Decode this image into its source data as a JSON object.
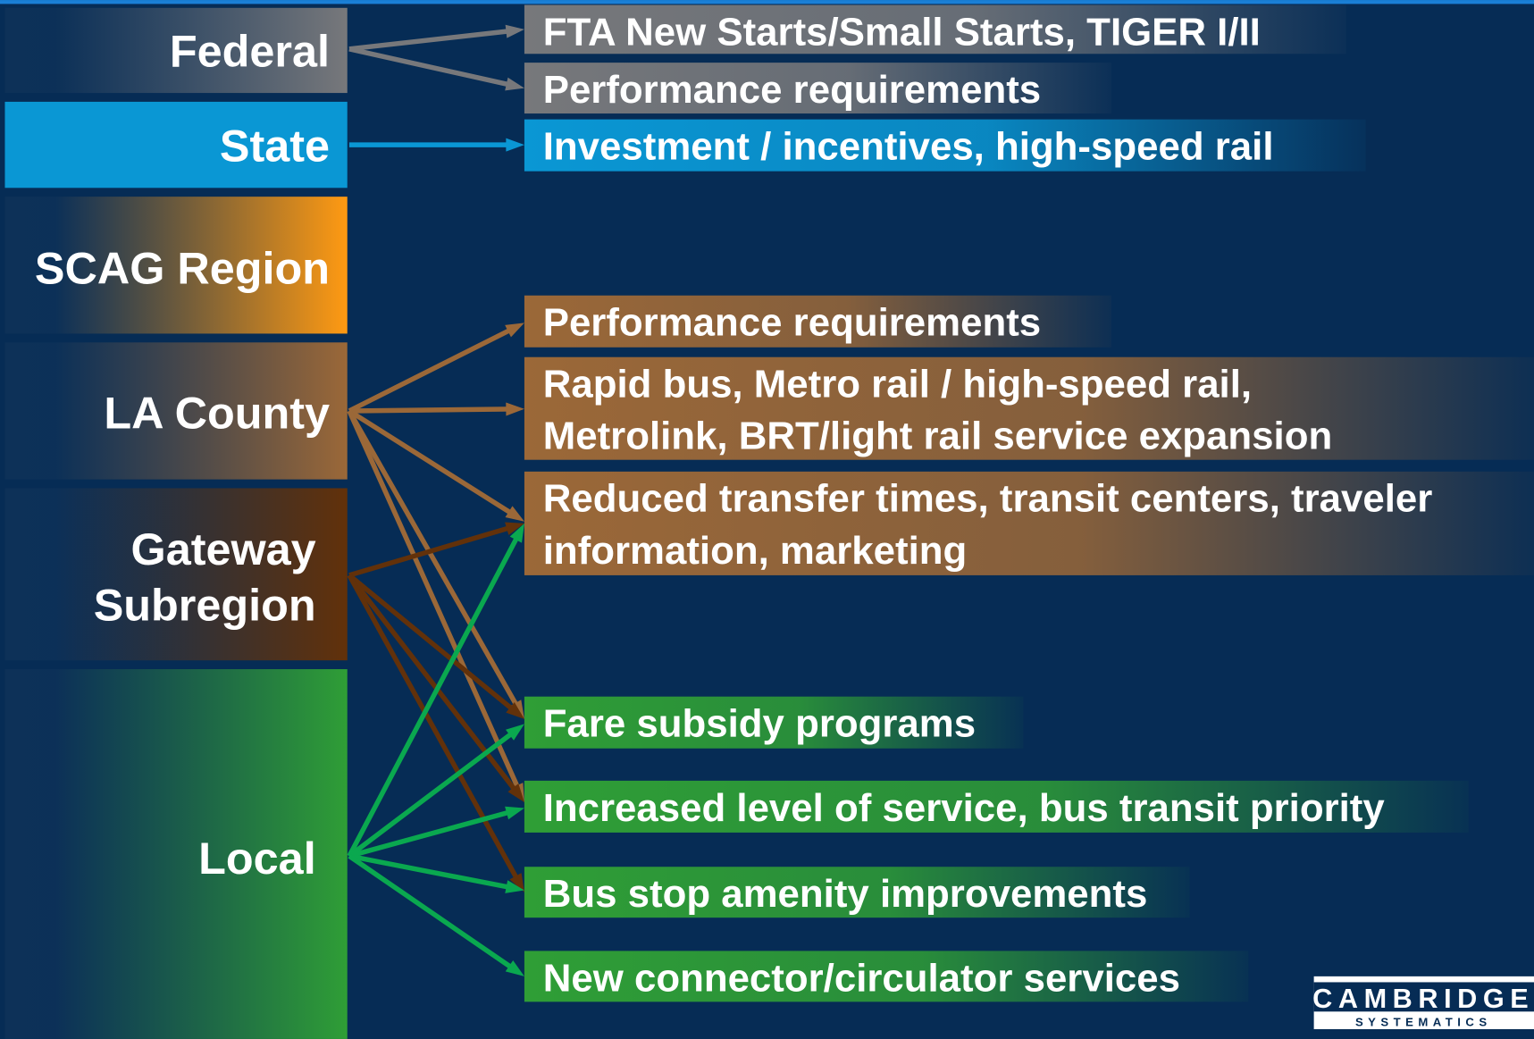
{
  "levels": [
    {
      "label": [
        "Federal"
      ]
    },
    {
      "label": [
        "State"
      ]
    },
    {
      "label": [
        "SCAG Region"
      ]
    },
    {
      "label": [
        "LA County"
      ]
    },
    {
      "label": [
        "Gateway",
        "Subregion"
      ]
    },
    {
      "label": [
        "Local"
      ]
    }
  ],
  "items": [
    {
      "label": [
        "FTA New Starts/Small Starts, TIGER I/II"
      ]
    },
    {
      "label": [
        "Performance requirements"
      ]
    },
    {
      "label": [
        "Investment / incentives, high-speed rail"
      ]
    },
    {
      "label": [
        "Performance requirements"
      ]
    },
    {
      "label": [
        "Rapid bus, Metro rail / high-speed rail,",
        "Metrolink, BRT/light rail service expansion"
      ]
    },
    {
      "label": [
        "Reduced transfer times, transit centers, traveler",
        "information, marketing"
      ]
    },
    {
      "label": [
        "Fare subsidy programs"
      ]
    },
    {
      "label": [
        "Increased level of service, bus transit priority"
      ]
    },
    {
      "label": [
        "Bus stop amenity improvements"
      ]
    },
    {
      "label": [
        "New connector/circulator services"
      ]
    }
  ],
  "logo": {
    "name": "CAMBRIDGE",
    "sub": "SYSTEMATICS"
  }
}
